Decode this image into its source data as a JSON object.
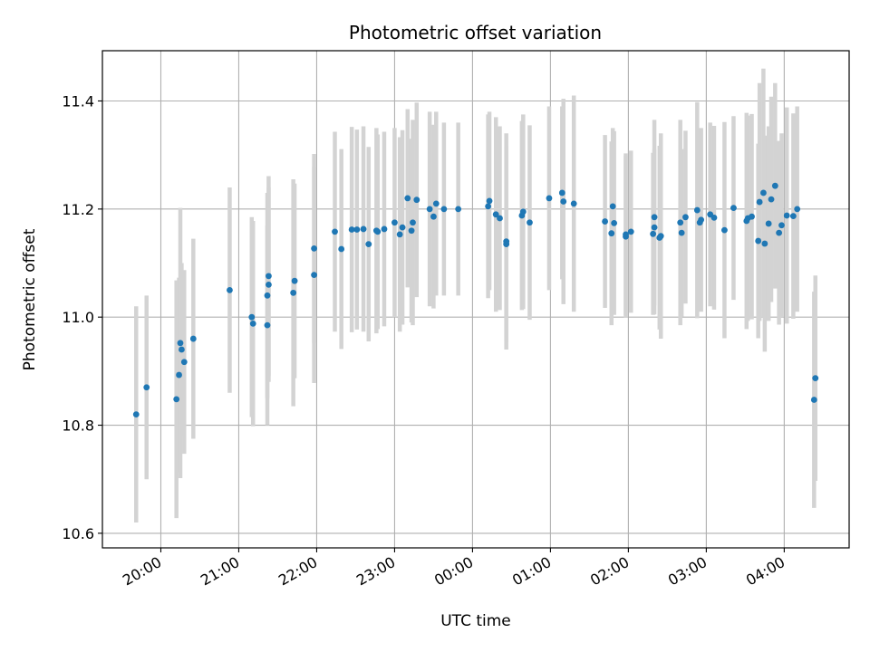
{
  "chart_data": {
    "type": "scatter",
    "title": "Photometric offset variation",
    "xlabel": "UTC time",
    "ylabel": "Photometric offset",
    "x_unit": "UTC time (hh:mm), consecutive night 19:30 to 04:50",
    "xlim": [
      "19:15",
      "04:50"
    ],
    "ylim": [
      10.573,
      11.493
    ],
    "grid": true,
    "x_ticks": [
      "20:00",
      "21:00",
      "22:00",
      "23:00",
      "00:00",
      "01:00",
      "02:00",
      "03:00",
      "04:00"
    ],
    "y_ticks": [
      "10.6",
      "10.8",
      "11.0",
      "11.2",
      "11.4"
    ],
    "point_color": "#1f77b4",
    "errorbar_color": "#d3d3d3",
    "series": [
      {
        "x": [
          "19:41",
          "19:49",
          "20:12",
          "20:14",
          "20:15",
          "20:16",
          "20:18",
          "20:25",
          "20:53",
          "21:10",
          "21:11",
          "21:22",
          "21:22",
          "21:23",
          "21:23",
          "21:42",
          "21:43",
          "21:58",
          "21:58",
          "22:14",
          "22:19",
          "22:27",
          "22:31",
          "22:36",
          "22:40",
          "22:46",
          "22:47",
          "22:52",
          "23:00",
          "23:04",
          "23:06",
          "23:10",
          "23:13",
          "23:14",
          "23:17",
          "23:27",
          "23:30",
          "23:32",
          "23:38",
          "23:49",
          "00:12",
          "00:13",
          "00:18",
          "00:21",
          "00:26",
          "00:26",
          "00:38",
          "00:39",
          "00:44",
          "00:59",
          "01:09",
          "01:10",
          "01:18",
          "01:42",
          "01:47",
          "01:48",
          "01:49",
          "01:58",
          "01:58",
          "02:02",
          "02:19",
          "02:20",
          "02:20",
          "02:24",
          "02:25",
          "02:40",
          "02:41",
          "02:44",
          "02:53",
          "02:55",
          "02:56",
          "03:03",
          "03:06",
          "03:14",
          "03:21",
          "03:31",
          "03:32",
          "03:35",
          "03:40",
          "03:41",
          "03:44",
          "03:45",
          "03:48",
          "03:50",
          "03:53",
          "03:56",
          "03:58",
          "04:02",
          "04:07",
          "04:10",
          "04:23",
          "04:24"
        ],
        "y": [
          10.82,
          10.87,
          10.848,
          10.893,
          10.952,
          10.94,
          10.917,
          10.96,
          11.05,
          11.0,
          10.988,
          10.985,
          11.04,
          11.06,
          11.076,
          11.045,
          11.067,
          11.078,
          11.127,
          11.158,
          11.126,
          11.162,
          11.162,
          11.163,
          11.135,
          11.16,
          11.158,
          11.163,
          11.175,
          11.153,
          11.166,
          11.22,
          11.16,
          11.175,
          11.217,
          11.2,
          11.186,
          11.21,
          11.2,
          11.2,
          11.205,
          11.215,
          11.19,
          11.183,
          11.135,
          11.14,
          11.188,
          11.195,
          11.175,
          11.22,
          11.23,
          11.214,
          11.21,
          11.177,
          11.155,
          11.205,
          11.174,
          11.149,
          11.153,
          11.158,
          11.154,
          11.166,
          11.185,
          11.147,
          11.15,
          11.175,
          11.156,
          11.185,
          11.198,
          11.175,
          11.18,
          11.19,
          11.184,
          11.161,
          11.202,
          11.178,
          11.183,
          11.186,
          11.141,
          11.213,
          11.23,
          11.136,
          11.173,
          11.218,
          11.243,
          11.156,
          11.17,
          11.188,
          11.187,
          11.2,
          10.847,
          10.887
        ],
        "yerr": [
          0.2,
          0.17,
          0.22,
          0.18,
          0.25,
          0.16,
          0.17,
          0.185,
          0.19,
          0.185,
          0.19,
          0.185,
          0.19,
          0.18,
          0.185,
          0.21,
          0.18,
          0.2,
          0.175,
          0.185,
          0.185,
          0.19,
          0.185,
          0.19,
          0.18,
          0.19,
          0.18,
          0.18,
          0.175,
          0.18,
          0.18,
          0.165,
          0.17,
          0.19,
          0.18,
          0.18,
          0.17,
          0.17,
          0.16,
          0.16,
          0.17,
          0.165,
          0.18,
          0.17,
          0.18,
          0.2,
          0.175,
          0.18,
          0.18,
          0.17,
          0.16,
          0.19,
          0.2,
          0.16,
          0.17,
          0.145,
          0.17,
          0.15,
          0.15,
          0.15,
          0.15,
          0.145,
          0.18,
          0.17,
          0.19,
          0.19,
          0.155,
          0.16,
          0.2,
          0.15,
          0.17,
          0.17,
          0.17,
          0.2,
          0.17,
          0.2,
          0.19,
          0.19,
          0.18,
          0.22,
          0.23,
          0.2,
          0.18,
          0.19,
          0.19,
          0.17,
          0.17,
          0.2,
          0.19,
          0.19,
          0.2,
          0.19
        ]
      }
    ]
  }
}
